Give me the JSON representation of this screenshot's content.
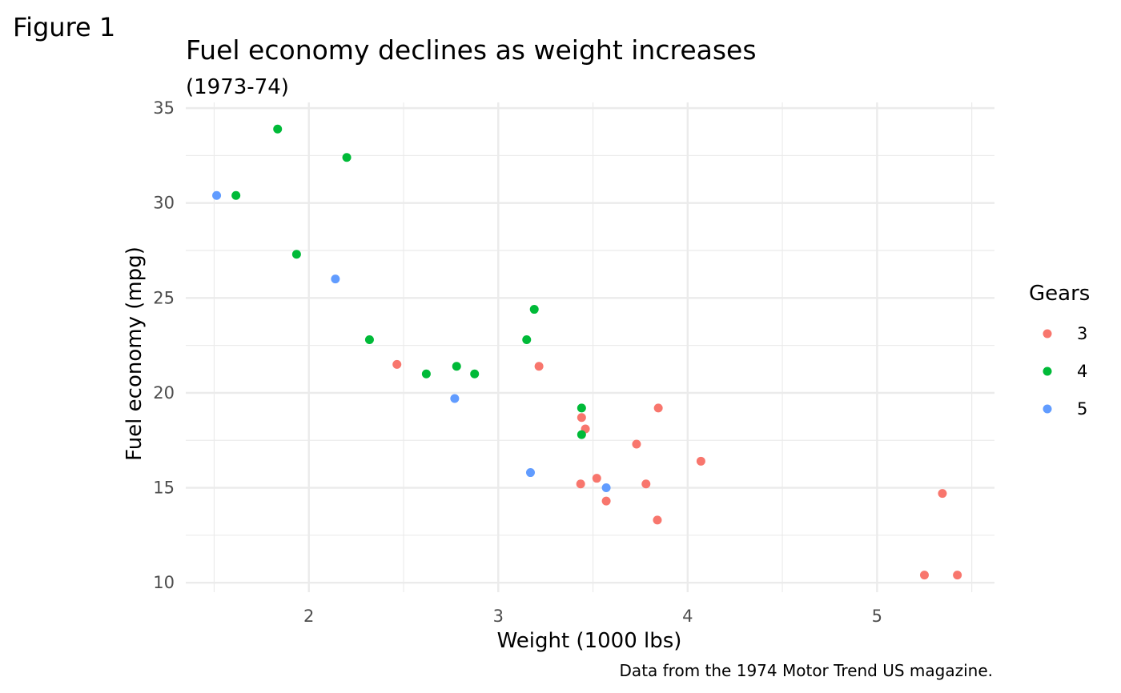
{
  "figure_label": "Figure 1",
  "chart_data": {
    "type": "scatter",
    "title": "Fuel economy declines as weight increases",
    "subtitle": "(1973-74)",
    "xlabel": "Weight (1000 lbs)",
    "ylabel": "Fuel economy (mpg)",
    "caption": "Data from the 1974 Motor Trend US magazine.",
    "xlim": [
      1.35,
      5.62
    ],
    "ylim": [
      9.5,
      35.3
    ],
    "x_ticks": [
      2,
      3,
      4,
      5
    ],
    "x_tick_labels": [
      "2",
      "3",
      "4",
      "5"
    ],
    "y_ticks": [
      10,
      15,
      20,
      25,
      30,
      35
    ],
    "y_tick_labels": [
      "10",
      "15",
      "20",
      "25",
      "30",
      "35"
    ],
    "grid": true,
    "legend": {
      "title": "Gears",
      "placement": "right"
    },
    "series": [
      {
        "name": "3",
        "color": "#F8766D",
        "points": [
          [
            2.465,
            21.5
          ],
          [
            3.215,
            21.4
          ],
          [
            3.44,
            18.7
          ],
          [
            3.46,
            18.1
          ],
          [
            3.57,
            14.3
          ],
          [
            4.07,
            16.4
          ],
          [
            3.73,
            17.3
          ],
          [
            3.78,
            15.2
          ],
          [
            5.25,
            10.4
          ],
          [
            5.424,
            10.4
          ],
          [
            5.345,
            14.7
          ],
          [
            3.52,
            15.5
          ],
          [
            3.435,
            15.2
          ],
          [
            3.84,
            13.3
          ],
          [
            3.845,
            19.2
          ]
        ]
      },
      {
        "name": "4",
        "color": "#00BA38",
        "points": [
          [
            2.62,
            21.0
          ],
          [
            2.875,
            21.0
          ],
          [
            2.32,
            22.8
          ],
          [
            3.19,
            24.4
          ],
          [
            3.15,
            22.8
          ],
          [
            3.44,
            19.2
          ],
          [
            3.44,
            17.8
          ],
          [
            2.2,
            32.4
          ],
          [
            1.615,
            30.4
          ],
          [
            1.835,
            33.9
          ],
          [
            1.935,
            27.3
          ],
          [
            2.78,
            21.4
          ]
        ]
      },
      {
        "name": "5",
        "color": "#619CFF",
        "points": [
          [
            2.14,
            26.0
          ],
          [
            1.513,
            30.4
          ],
          [
            3.17,
            15.8
          ],
          [
            2.77,
            19.7
          ],
          [
            3.57,
            15.0
          ]
        ]
      }
    ]
  }
}
